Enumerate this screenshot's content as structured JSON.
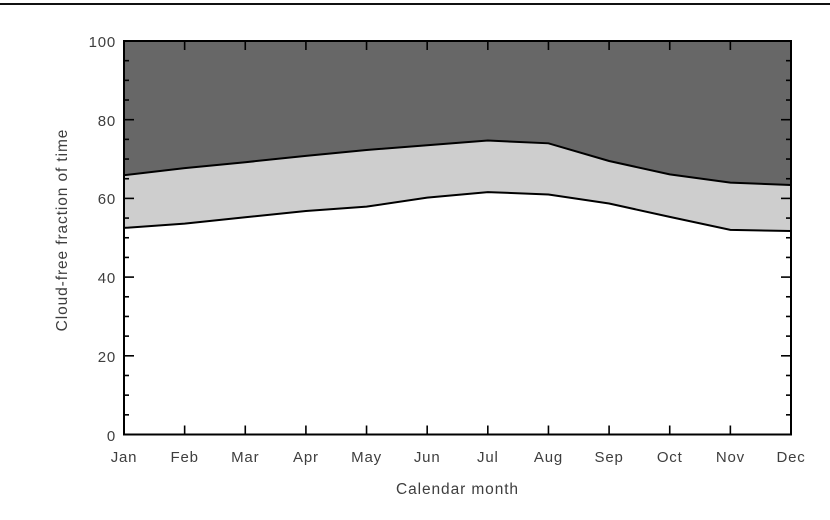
{
  "page": {
    "background_color": "#ffffff",
    "top_rule_color": "#111111"
  },
  "chart_data": {
    "type": "area",
    "title": "",
    "xlabel": "Calendar month",
    "ylabel": "Cloud-free fraction of time",
    "categories": [
      "Jan",
      "Feb",
      "Mar",
      "Apr",
      "May",
      "Jun",
      "Jul",
      "Aug",
      "Sep",
      "Oct",
      "Nov",
      "Dec"
    ],
    "ylim": [
      0,
      100
    ],
    "ytick_labels": [
      "0",
      "20",
      "40",
      "60",
      "80",
      "100"
    ],
    "yticks_major": [
      0,
      20,
      40,
      60,
      80,
      100
    ],
    "ytick_minor_step": 5,
    "grid": false,
    "legend": "none",
    "series": [
      {
        "name": "lower-curve-boundary",
        "description": "lower boundary between white region and light gray band",
        "values": [
          52.5,
          53.6,
          55.2,
          56.8,
          57.9,
          60.2,
          61.6,
          61.0,
          58.7,
          55.3,
          52.0,
          51.7
        ]
      },
      {
        "name": "upper-curve-boundary",
        "description": "upper boundary between light gray band and dark gray region",
        "values": [
          65.9,
          67.7,
          69.2,
          70.8,
          72.3,
          73.5,
          74.7,
          74.0,
          69.5,
          66.1,
          64.0,
          63.4
        ]
      }
    ],
    "region_fills": {
      "above_upper_curve": "#676767",
      "between_curves": "#cecece",
      "below_lower_curve": "#ffffff"
    },
    "line_color": "#000000",
    "frame_color": "#000000"
  }
}
